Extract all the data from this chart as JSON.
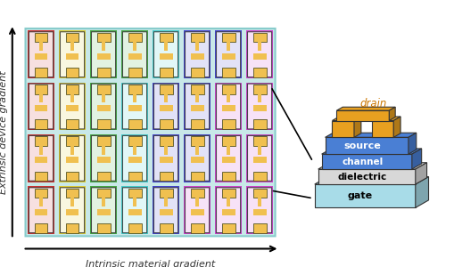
{
  "grid_colors": [
    [
      "#cc3333",
      "#ddcc33",
      "#44aa44",
      "#44aa44",
      "#44cccc",
      "#4444cc",
      "#4444cc",
      "#cc44cc"
    ],
    [
      "#cc3333",
      "#ddcc33",
      "#44aa44",
      "#44cccc",
      "#4444cc",
      "#4444cc",
      "#cc44cc",
      "#cc44cc"
    ],
    [
      "#cc3333",
      "#ddcc33",
      "#44aa44",
      "#44cccc",
      "#4444cc",
      "#4444cc",
      "#cc44cc",
      "#cc44cc"
    ],
    [
      "#cc3333",
      "#ddcc33",
      "#44aa44",
      "#44cccc",
      "#4444cc",
      "#cc44cc",
      "#cc44cc",
      "#cc44cc"
    ]
  ],
  "grid_bg": "#dddddd",
  "panel_bg": "#c8e8e8",
  "panel_border": "#88cccc",
  "transistor_fill": "#f0c050",
  "gate_color": "#a8dce8",
  "gate_label": "gate",
  "dielectric_color": "#e8e8e8",
  "dielectric_label": "dielectric",
  "channel_color": "#4a7fd4",
  "channel_label": "channel",
  "source_color": "#4a7fd4",
  "source_label": "source",
  "drain_color": "#e8a020",
  "drain_label": "drain",
  "xlabel": "Intrinsic material gradient",
  "ylabel": "Extrinsic device gradient",
  "arrow_color": "#333333",
  "label_color": "#333333"
}
